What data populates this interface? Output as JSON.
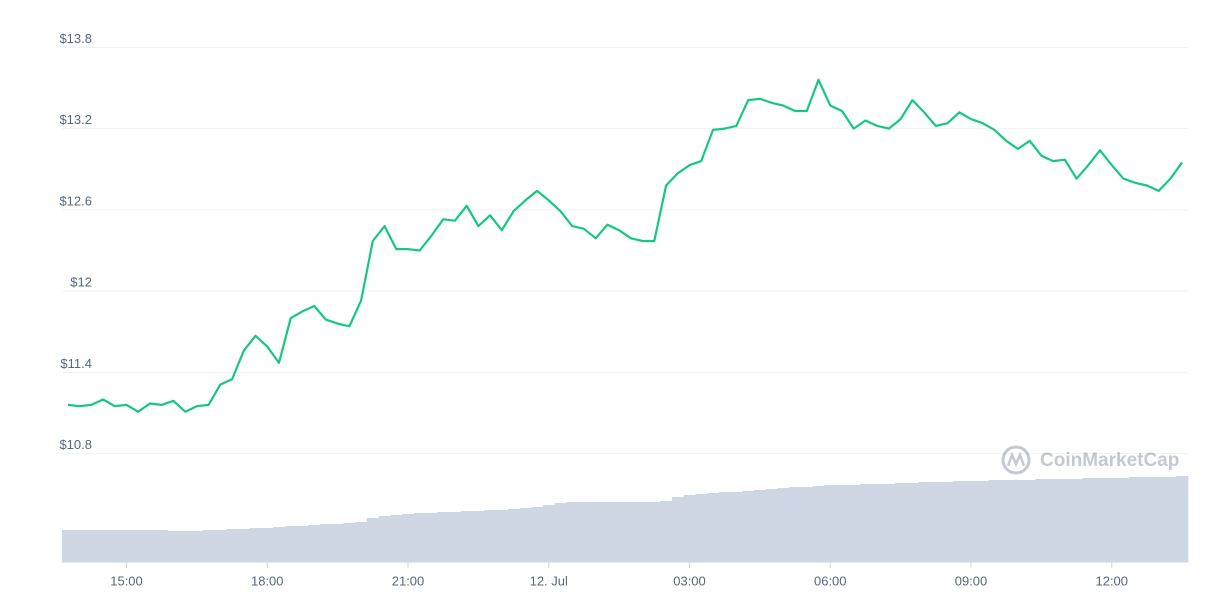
{
  "chart_data": {
    "type": "line",
    "watermark": "CoinMarketCap",
    "x": [
      "13:45",
      "14:00",
      "14:15",
      "14:30",
      "14:45",
      "15:00",
      "15:15",
      "15:30",
      "15:45",
      "16:00",
      "16:15",
      "16:30",
      "16:45",
      "17:00",
      "17:15",
      "17:30",
      "17:45",
      "18:00",
      "18:15",
      "18:30",
      "18:45",
      "19:00",
      "19:15",
      "19:30",
      "19:45",
      "20:00",
      "20:15",
      "20:30",
      "20:45",
      "21:00",
      "21:15",
      "21:30",
      "21:45",
      "22:00",
      "22:15",
      "22:30",
      "22:45",
      "23:00",
      "23:15",
      "23:30",
      "23:45",
      "00:00",
      "00:15",
      "00:30",
      "00:45",
      "01:00",
      "01:15",
      "01:30",
      "01:45",
      "02:00",
      "02:15",
      "02:30",
      "02:45",
      "03:00",
      "03:15",
      "03:30",
      "03:45",
      "04:00",
      "04:15",
      "04:30",
      "04:45",
      "05:00",
      "05:15",
      "05:30",
      "05:45",
      "06:00",
      "06:15",
      "06:30",
      "06:45",
      "07:00",
      "07:15",
      "07:30",
      "07:45",
      "08:00",
      "08:15",
      "08:30",
      "08:45",
      "09:00",
      "09:15",
      "09:30",
      "09:45",
      "10:00",
      "10:15",
      "10:30",
      "10:45",
      "11:00",
      "11:15",
      "11:30",
      "11:45",
      "12:00",
      "12:15",
      "12:30",
      "12:45",
      "13:00",
      "13:15",
      "13:30"
    ],
    "series": [
      {
        "name": "Price",
        "color": "#16c784",
        "values": [
          11.16,
          11.15,
          11.16,
          11.2,
          11.15,
          11.16,
          11.11,
          11.17,
          11.16,
          11.19,
          11.11,
          11.15,
          11.16,
          11.31,
          11.35,
          11.56,
          11.67,
          11.59,
          11.47,
          11.8,
          11.85,
          11.89,
          11.79,
          11.76,
          11.74,
          11.93,
          12.37,
          12.48,
          12.31,
          12.31,
          12.3,
          12.41,
          12.53,
          12.52,
          12.63,
          12.48,
          12.56,
          12.45,
          12.59,
          12.67,
          12.74,
          12.67,
          12.59,
          12.48,
          12.46,
          12.39,
          12.49,
          12.45,
          12.39,
          12.37,
          12.37,
          12.78,
          12.87,
          12.93,
          12.96,
          13.19,
          13.2,
          13.22,
          13.41,
          13.42,
          13.39,
          13.37,
          13.33,
          13.33,
          13.56,
          13.37,
          13.33,
          13.2,
          13.26,
          13.22,
          13.2,
          13.27,
          13.41,
          13.32,
          13.22,
          13.24,
          13.32,
          13.27,
          13.24,
          13.19,
          13.11,
          13.05,
          13.11,
          13.0,
          12.96,
          12.97,
          12.83,
          12.93,
          13.04,
          12.93,
          12.83,
          12.8,
          12.78,
          12.74,
          12.83,
          12.95
        ]
      },
      {
        "name": "Volume",
        "color": "#cfd6e4",
        "values": [
          32,
          32,
          32,
          32,
          32,
          32,
          32,
          32,
          32,
          31,
          31,
          31,
          32,
          32,
          33,
          33,
          34,
          34,
          35,
          36,
          36,
          37,
          38,
          38,
          39,
          40,
          44,
          46,
          47,
          48,
          49,
          49,
          50,
          50,
          51,
          51,
          52,
          52,
          53,
          54,
          55,
          57,
          59,
          60,
          60,
          60,
          60,
          60,
          60,
          60,
          60,
          61,
          65,
          67,
          68,
          69,
          70,
          70,
          71,
          72,
          73,
          74,
          75,
          75,
          76,
          77,
          77,
          77,
          78,
          78,
          78,
          79,
          79,
          80,
          80,
          80,
          81,
          81,
          81,
          82,
          82,
          82,
          82,
          83,
          83,
          83,
          83,
          84,
          84,
          84,
          84,
          85,
          85,
          85,
          85,
          86
        ]
      }
    ],
    "volume_lim": [
      0,
      100
    ],
    "ylim": [
      10.0,
      13.95
    ],
    "yticks": [
      {
        "value": 10.8,
        "label": "$10.8"
      },
      {
        "value": 11.4,
        "label": "$11.4"
      },
      {
        "value": 12,
        "label": "$12"
      },
      {
        "value": 12.6,
        "label": "$12.6"
      },
      {
        "value": 13.2,
        "label": "$13.2"
      },
      {
        "value": 13.8,
        "label": "$13.8"
      }
    ],
    "xticks": [
      "15:00",
      "18:00",
      "21:00",
      {
        "value": "00:00",
        "label": "12. Jul"
      },
      "03:00",
      "06:00",
      "09:00",
      "12:00"
    ],
    "grid": true
  }
}
